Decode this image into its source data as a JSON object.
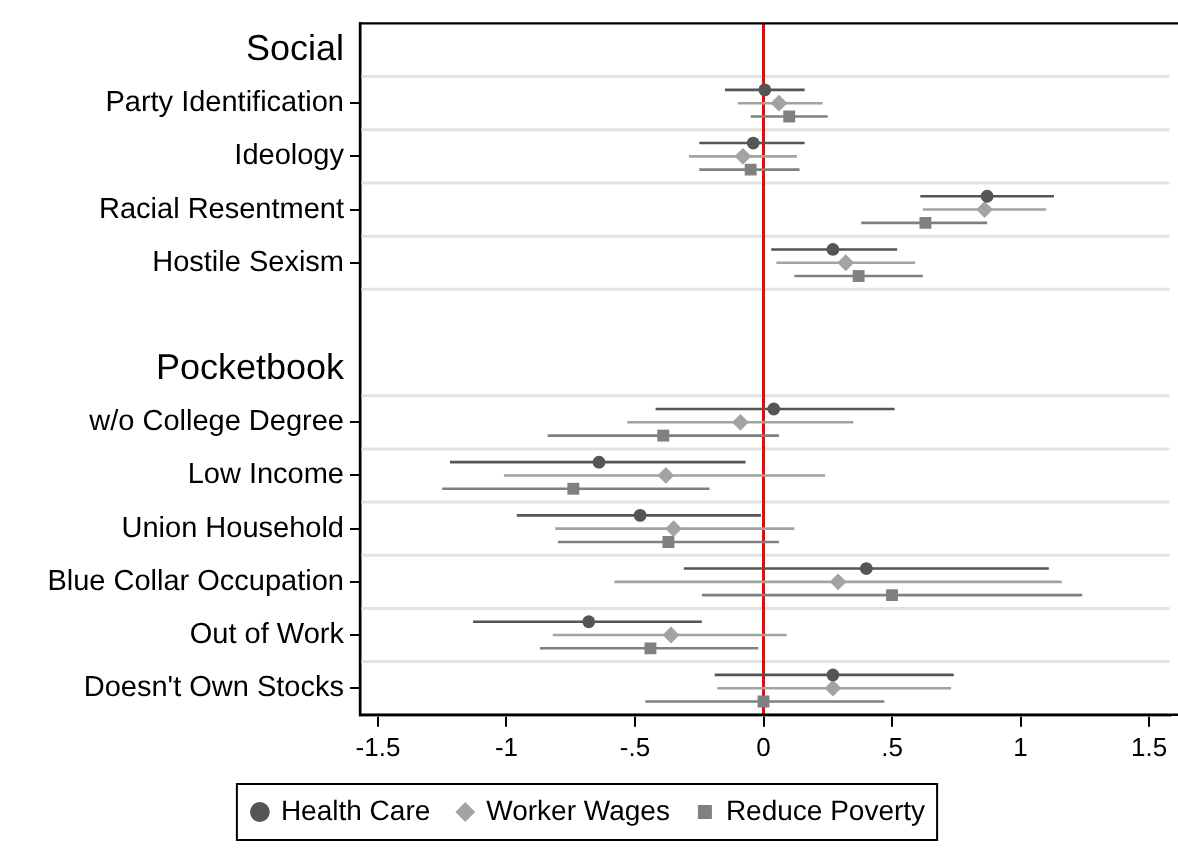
{
  "chart_data": {
    "type": "scatter",
    "orientation": "horizontal",
    "categories": [
      "Social",
      "Party Identification",
      "Ideology",
      "Racial Resentment",
      "Hostile Sexism",
      null,
      "Pocketbook",
      "w/o College Degree",
      "Low Income",
      "Union Household",
      "Blue Collar Occupation",
      "Out of Work",
      "Doesn't Own Stocks"
    ],
    "series": [
      {
        "name": "Health Care",
        "color": "#555555",
        "marker": "circle",
        "values": [
          null,
          0.005,
          -0.04,
          0.87,
          0.27,
          null,
          null,
          0.04,
          -0.64,
          -0.48,
          0.4,
          -0.68,
          0.27
        ],
        "errors": [
          null,
          [
            -0.15,
            0.16
          ],
          [
            -0.25,
            0.16
          ],
          [
            0.61,
            1.13
          ],
          [
            0.03,
            0.52
          ],
          null,
          null,
          [
            -0.42,
            0.51
          ],
          [
            -1.22,
            -0.07
          ],
          [
            -0.96,
            -0.01
          ],
          [
            -0.31,
            1.11
          ],
          [
            -1.13,
            -0.24
          ],
          [
            -0.19,
            0.74
          ]
        ]
      },
      {
        "name": "Worker Wages",
        "color": "#a3a3a3",
        "marker": "diamond",
        "values": [
          null,
          0.06,
          -0.08,
          0.86,
          0.32,
          null,
          null,
          -0.09,
          -0.38,
          -0.35,
          0.29,
          -0.36,
          0.27
        ],
        "errors": [
          null,
          [
            -0.1,
            0.23
          ],
          [
            -0.29,
            0.13
          ],
          [
            0.62,
            1.1
          ],
          [
            0.05,
            0.59
          ],
          null,
          null,
          [
            -0.53,
            0.35
          ],
          [
            -1.01,
            0.24
          ],
          [
            -0.81,
            0.12
          ],
          [
            -0.58,
            1.16
          ],
          [
            -0.82,
            0.09
          ],
          [
            -0.18,
            0.73
          ]
        ]
      },
      {
        "name": "Reduce Poverty",
        "color": "#808080",
        "marker": "square",
        "values": [
          null,
          0.1,
          -0.05,
          0.63,
          0.37,
          null,
          null,
          -0.39,
          -0.74,
          -0.37,
          0.5,
          -0.44,
          0.0
        ],
        "errors": [
          null,
          [
            -0.05,
            0.25
          ],
          [
            -0.25,
            0.14
          ],
          [
            0.38,
            0.87
          ],
          [
            0.12,
            0.62
          ],
          null,
          null,
          [
            -0.84,
            0.06
          ],
          [
            -1.25,
            -0.21
          ],
          [
            -0.8,
            0.06
          ],
          [
            -0.24,
            1.24
          ],
          [
            -0.87,
            -0.02
          ],
          [
            -0.46,
            0.47
          ]
        ]
      }
    ],
    "xlim": [
      -1.57,
      1.58
    ],
    "xticks": [
      {
        "value": -1.5,
        "label": "-1.5"
      },
      {
        "value": -1,
        "label": "-1"
      },
      {
        "value": -0.5,
        "label": "-.5"
      },
      {
        "value": 0,
        "label": "0"
      },
      {
        "value": 0.5,
        "label": ".5"
      },
      {
        "value": 1,
        "label": "1"
      },
      {
        "value": 1.5,
        "label": "1.5"
      }
    ],
    "ref_lines": [
      {
        "axis": "x",
        "value": 0,
        "color": "#ff0000"
      }
    ],
    "grid": "y",
    "legend": "bottom"
  }
}
